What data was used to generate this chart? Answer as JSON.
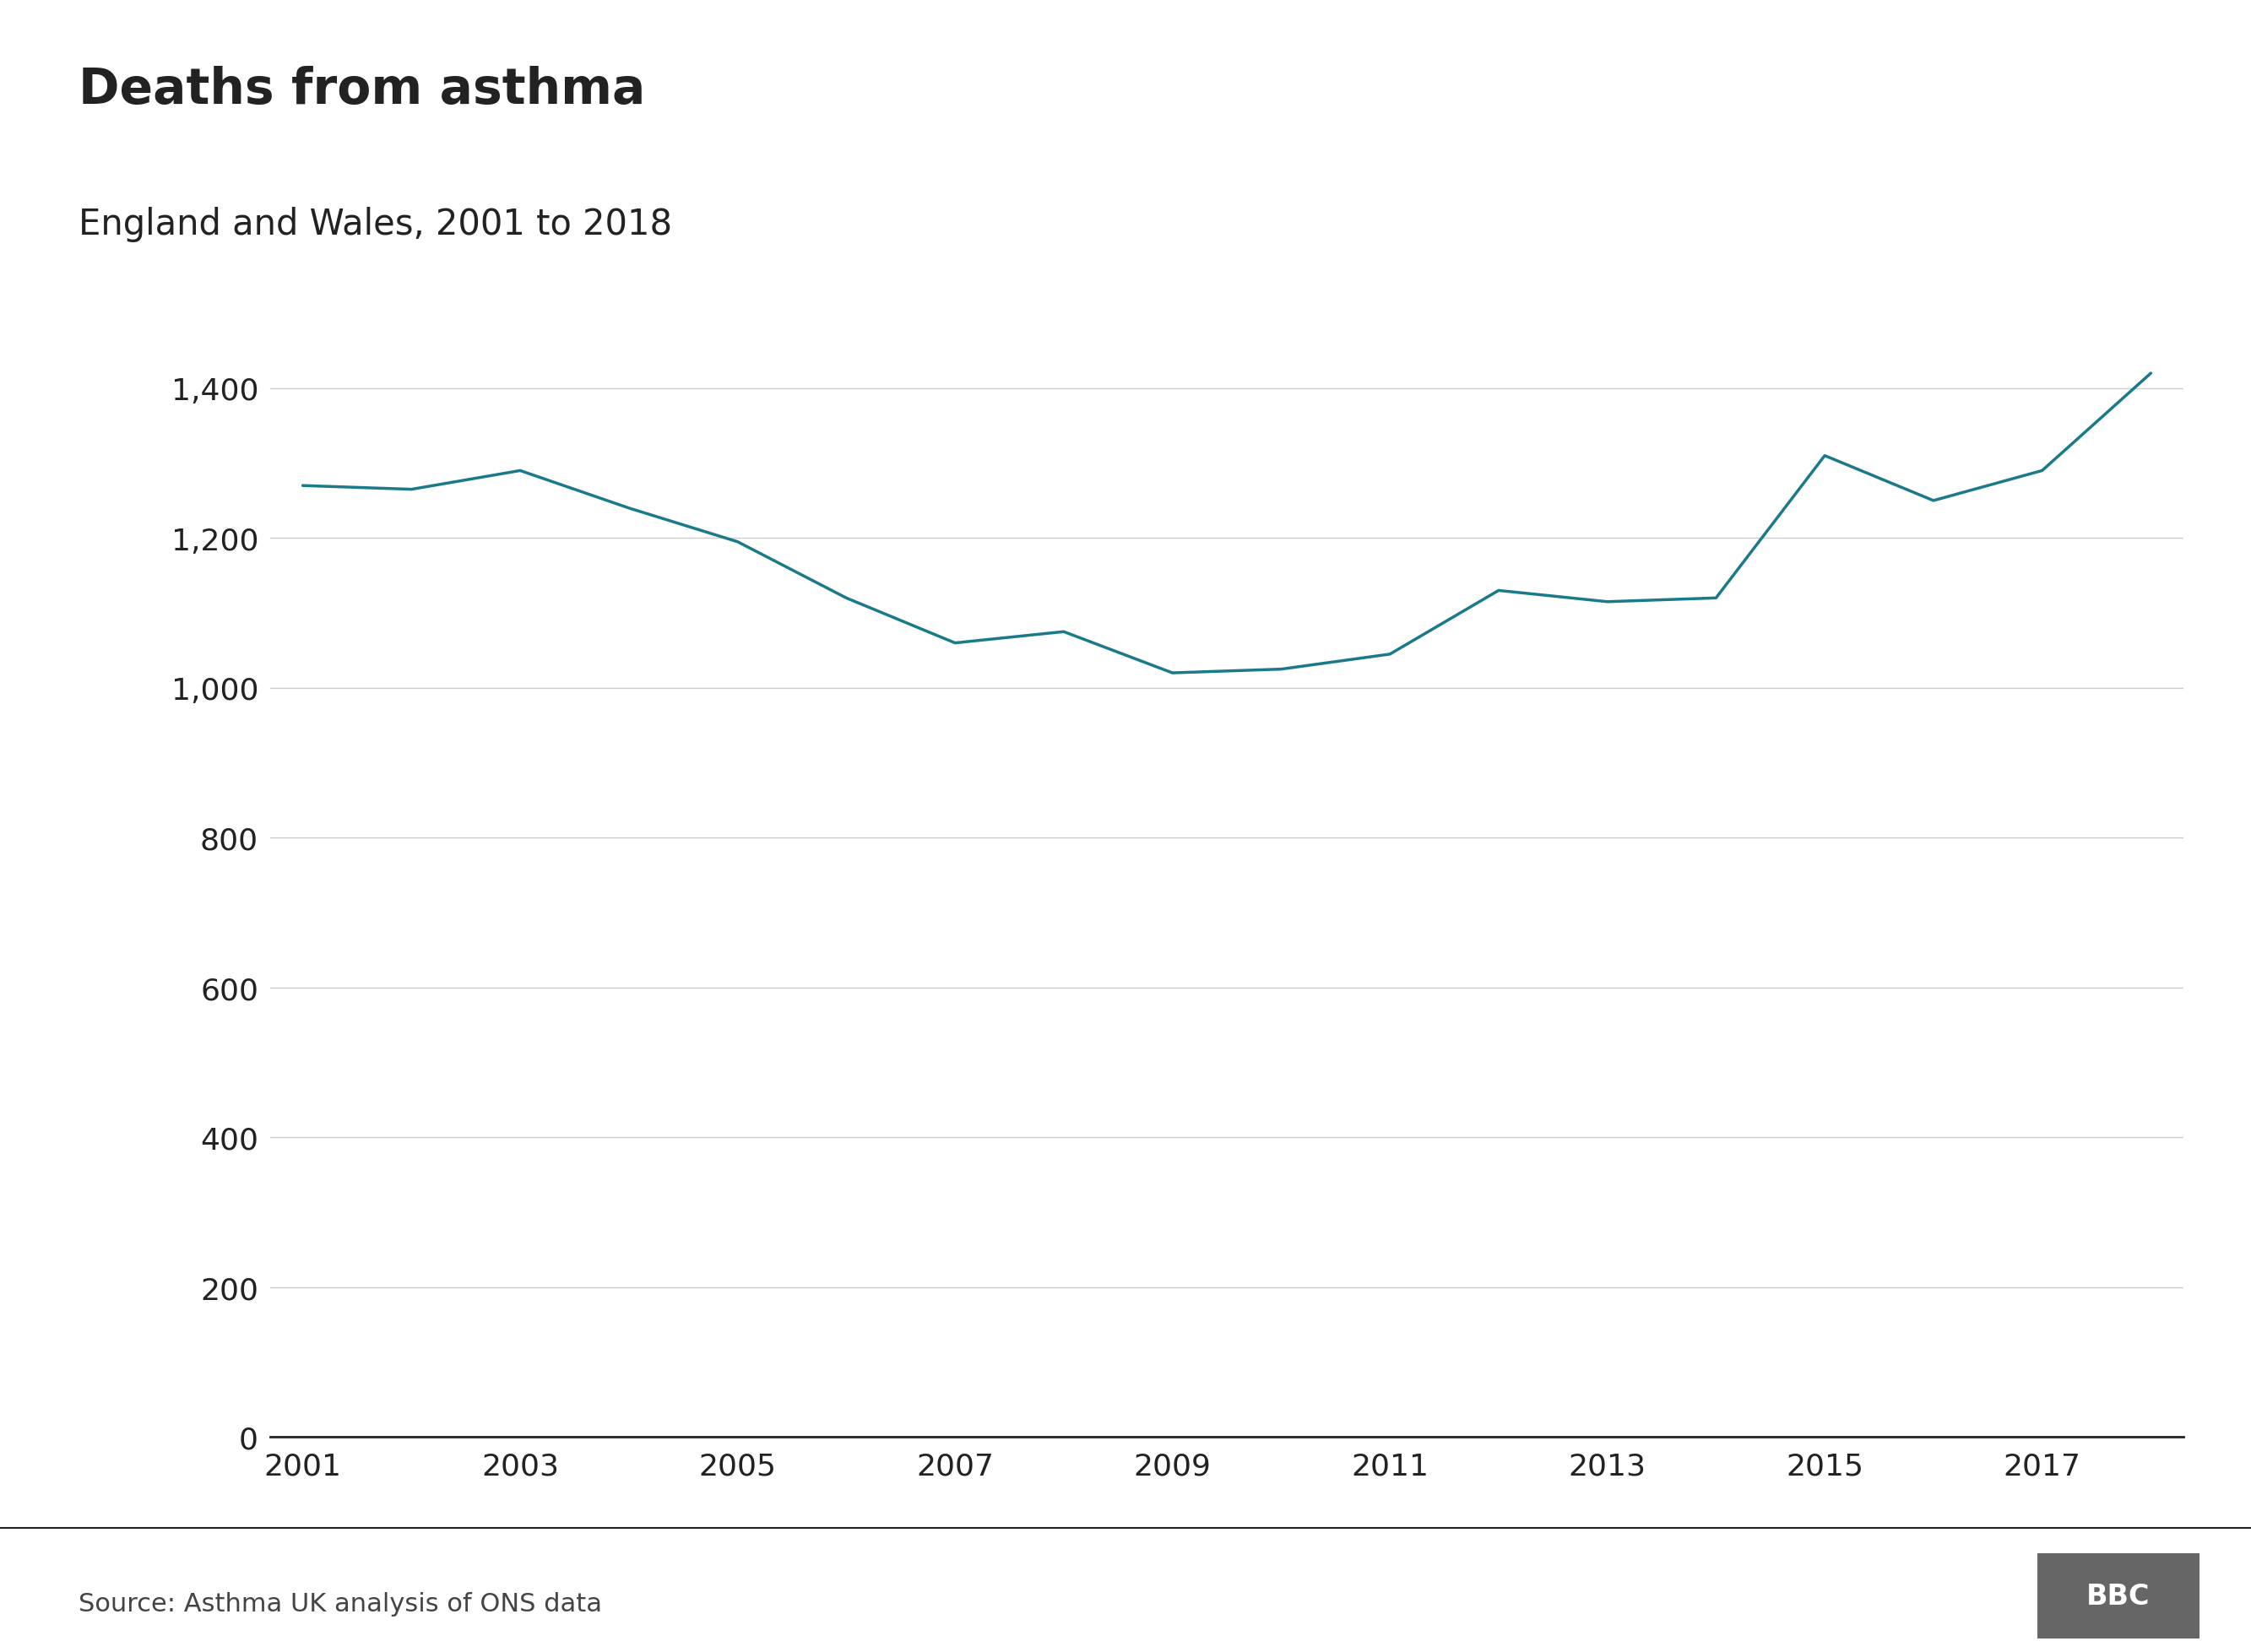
{
  "title": "Deaths from asthma",
  "subtitle": "England and Wales, 2001 to 2018",
  "source": "Source: Asthma UK analysis of ONS data",
  "years": [
    2001,
    2002,
    2003,
    2004,
    2005,
    2006,
    2007,
    2008,
    2009,
    2010,
    2011,
    2012,
    2013,
    2014,
    2015,
    2016,
    2017,
    2018
  ],
  "values": [
    1270,
    1265,
    1290,
    1240,
    1195,
    1120,
    1060,
    1075,
    1020,
    1025,
    1045,
    1130,
    1115,
    1120,
    1310,
    1250,
    1290,
    1420
  ],
  "line_color": "#1a7a8a",
  "line_width": 2.5,
  "background_color": "#ffffff",
  "grid_color": "#cccccc",
  "yticks": [
    0,
    200,
    400,
    600,
    800,
    1000,
    1200,
    1400
  ],
  "xticks": [
    2001,
    2003,
    2005,
    2007,
    2009,
    2011,
    2013,
    2015,
    2017
  ],
  "ylim": [
    0,
    1500
  ],
  "xlim": [
    2001,
    2018
  ],
  "title_fontsize": 42,
  "subtitle_fontsize": 30,
  "tick_fontsize": 26,
  "source_fontsize": 22,
  "title_color": "#222222",
  "subtitle_color": "#222222",
  "tick_color": "#222222",
  "source_color": "#444444",
  "bbc_box_color": "#666666",
  "bbc_text_color": "#ffffff"
}
